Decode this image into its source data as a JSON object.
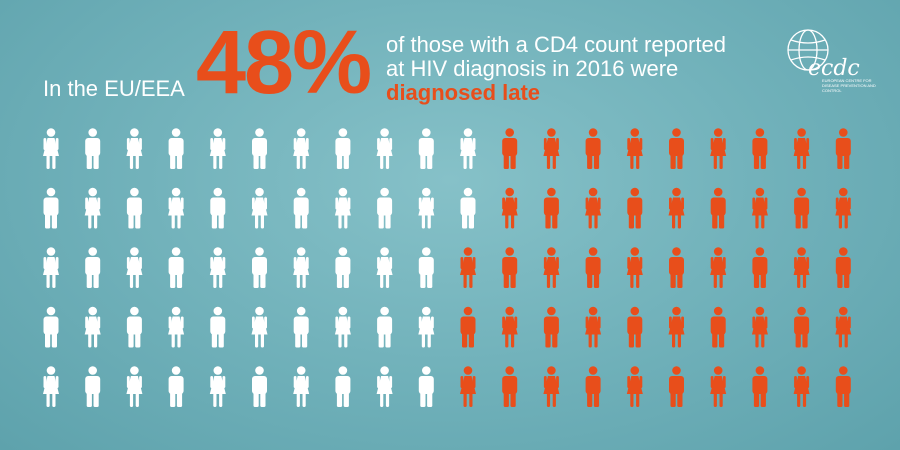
{
  "headline": {
    "intro": "In the EU/EEA",
    "value": "48%",
    "description_line1": "of those with a CD4 count reported",
    "description_line2": "at HIV diagnosis in 2016 were",
    "highlight": "diagnosed late"
  },
  "logo": {
    "wordmark": "ecdc",
    "subtitle": "EUROPEAN CENTRE FOR DISEASE PREVENTION AND CONTROL"
  },
  "colors": {
    "background": "#74b5bd",
    "accent": "#e84e1b",
    "neutral": "#ffffff"
  },
  "chart_data": {
    "type": "pictogram",
    "total_icons": 100,
    "highlighted_icons": 48,
    "highlighted_percent": 48,
    "rows": 5,
    "columns": 20,
    "fill_order": "column-major, highlighted icons at the right end",
    "highlight_color": "#e84e1b",
    "base_color": "#ffffff"
  }
}
